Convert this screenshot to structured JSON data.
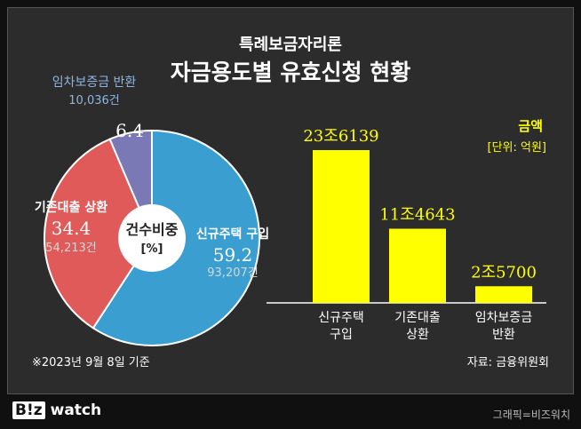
{
  "header": {
    "subtitle": "특례보금자리론",
    "title": "자금용도별 유효신청 현황"
  },
  "pie_center": {
    "line1": "건수비중",
    "line2": "[%]"
  },
  "pie_labels": [
    {
      "name": "신규주택 구입",
      "pct": "59.2",
      "count": "93,207건"
    },
    {
      "name": "기존대출 상환",
      "pct": "34.4",
      "count": "54,213건"
    },
    {
      "name": "임차보증금 반환",
      "pct": "6.4",
      "count": "10,036건"
    }
  ],
  "bar_legend": {
    "title": "금액",
    "unit": "[단위: 억원]"
  },
  "bar_value_labels": [
    "23조6139",
    "11조4643",
    "2조5700"
  ],
  "bar_category_lines": [
    [
      "신규주택",
      "구입"
    ],
    [
      "기존대출",
      "상환"
    ],
    [
      "임차보증금",
      "반환"
    ]
  ],
  "footnote": "※2023년 9월 8일 기준",
  "source": "자료: 금융위원회",
  "footer": {
    "logo_badge": "B!z",
    "logo_text": "watch",
    "credit": "그래픽=비즈워치"
  },
  "colors": {
    "blue": "#3a9fd0",
    "red": "#e05a5a",
    "purple": "#7b78b6",
    "bar": "#ffff00",
    "pct_text": "#ffffff",
    "count_text": "#d6d6d6"
  },
  "chart_data": [
    {
      "type": "pie",
      "title": "건수비중 [%]",
      "categories": [
        "신규주택 구입",
        "기존대출 상환",
        "임차보증금 반환"
      ],
      "values": [
        59.2,
        34.4,
        6.4
      ],
      "counts": [
        93207,
        54213,
        10036
      ]
    },
    {
      "type": "bar",
      "title": "금액 [단위: 억원]",
      "categories": [
        "신규주택 구입",
        "기존대출 상환",
        "임차보증금 반환"
      ],
      "values": [
        236139,
        114643,
        25700
      ],
      "ylim": [
        0,
        236139
      ]
    }
  ]
}
